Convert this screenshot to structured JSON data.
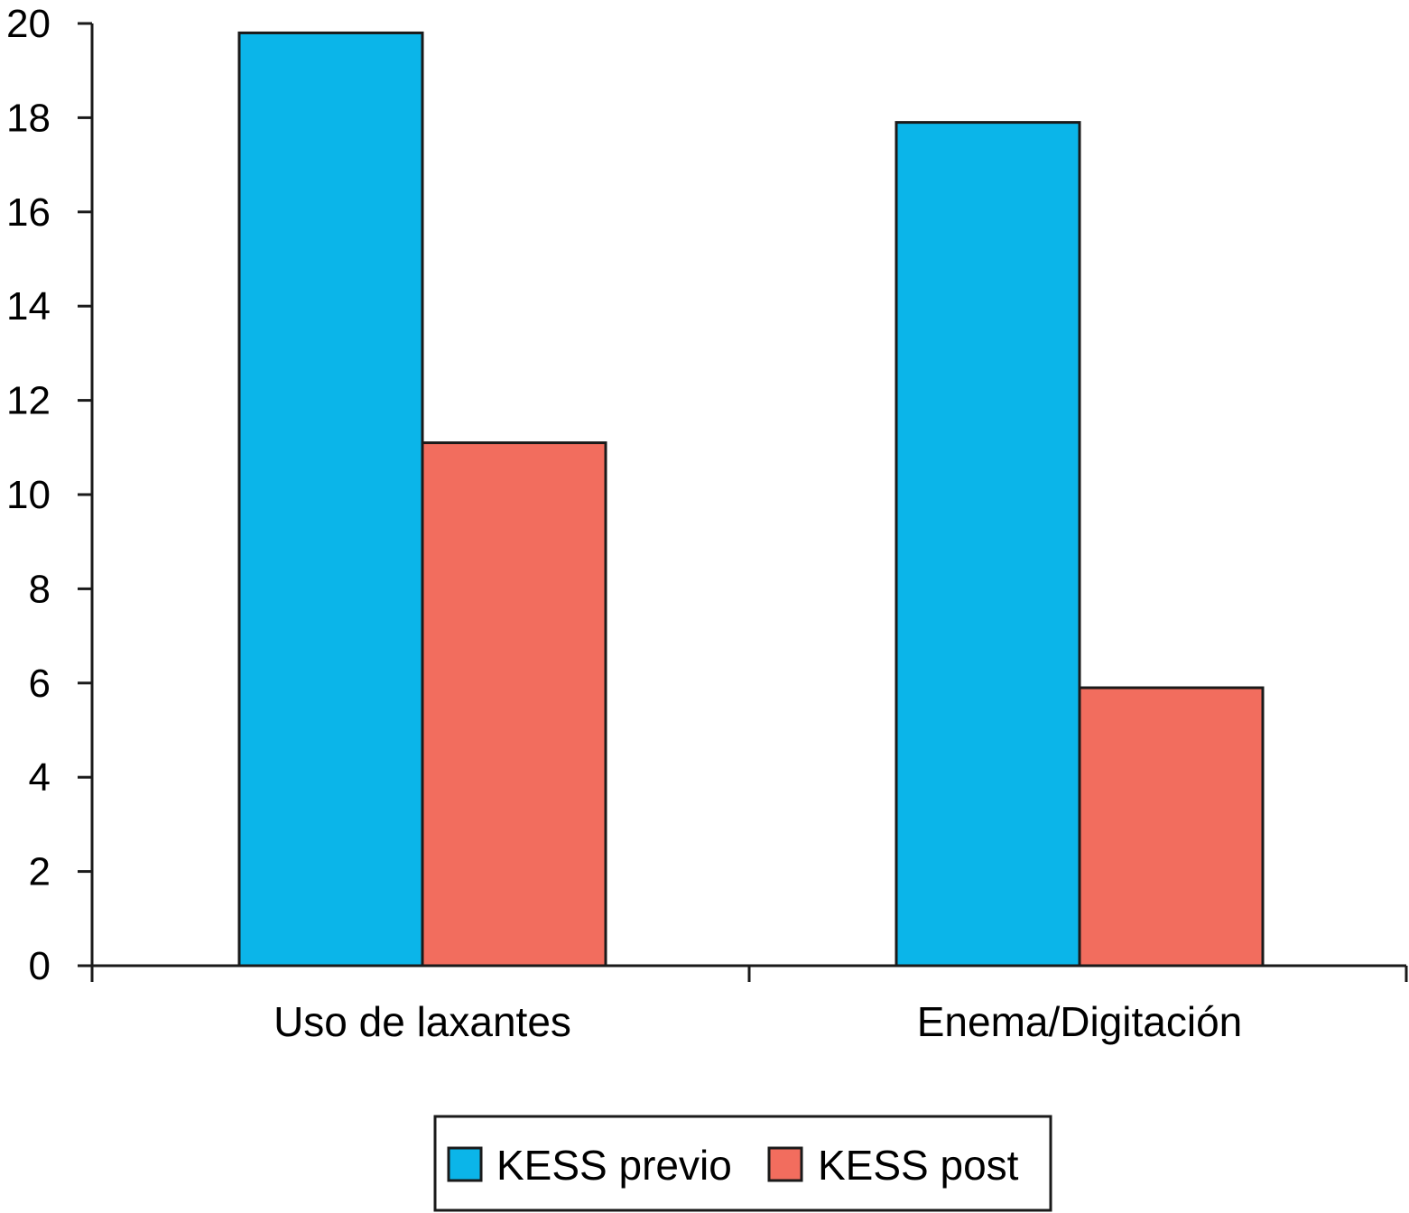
{
  "chart_data": {
    "type": "bar",
    "title": "",
    "xlabel": "",
    "ylabel": "",
    "categories": [
      "Uso de laxantes",
      "Enema/Digitación"
    ],
    "series": [
      {
        "name": "KESS previo",
        "values": [
          19.8,
          17.9
        ],
        "color": "#0bb5e9"
      },
      {
        "name": "KESS post",
        "values": [
          11.1,
          5.9
        ],
        "color": "#f26d5e"
      }
    ],
    "ylim": [
      0,
      20
    ],
    "yticks": [
      0,
      2,
      4,
      6,
      8,
      10,
      12,
      14,
      16,
      18,
      20
    ],
    "grid": false,
    "legend_position": "bottom-center"
  }
}
